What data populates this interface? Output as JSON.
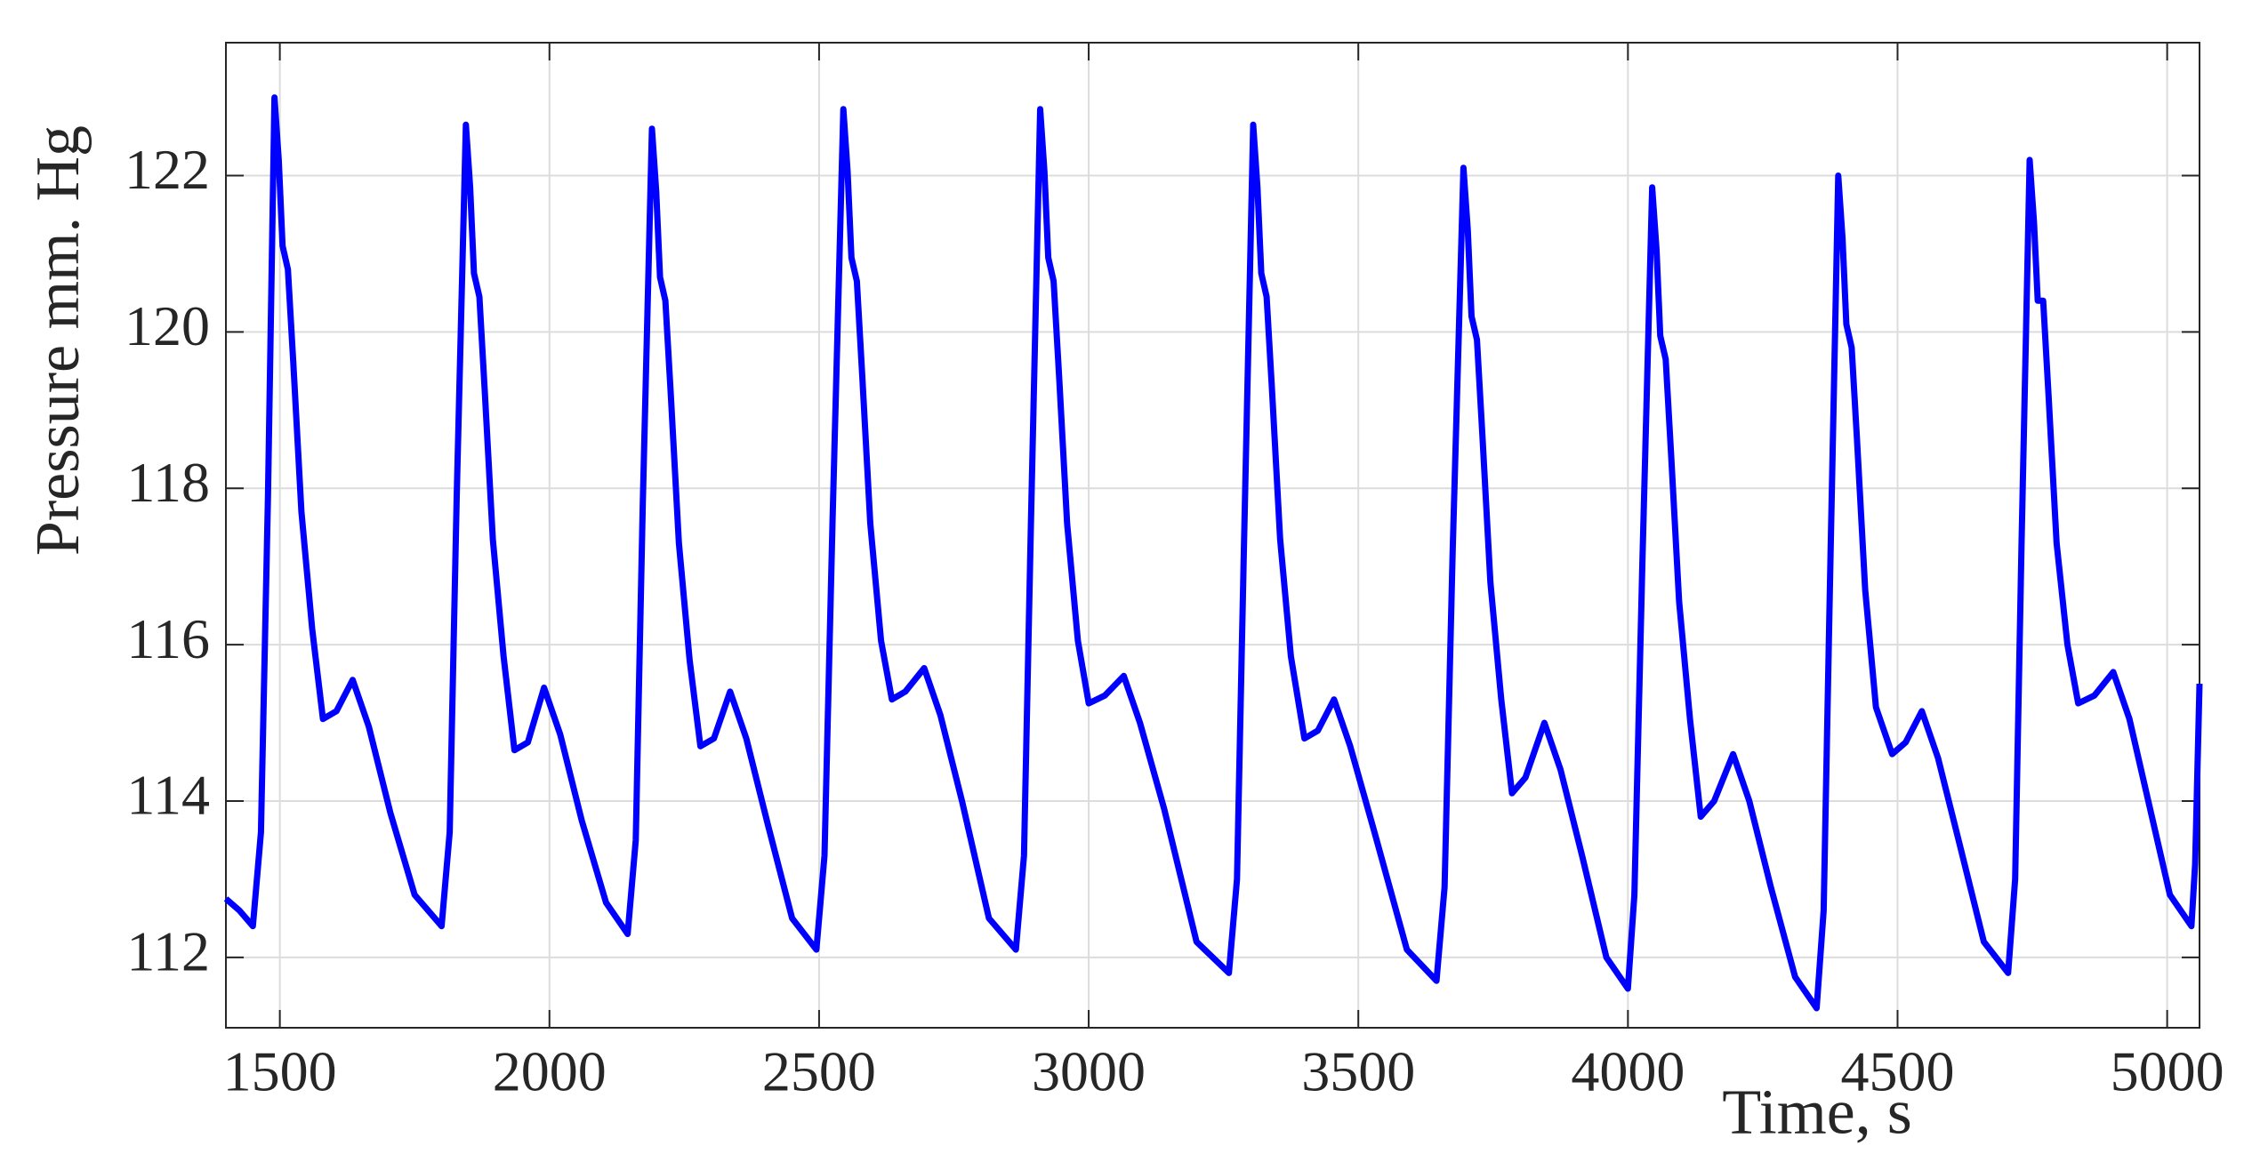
{
  "chart_data": {
    "type": "line",
    "xlabel": "Time, s",
    "ylabel": "Pressure mm. Hg",
    "color": "#0000ff",
    "grid": true,
    "xlim": [
      1400,
      5060
    ],
    "ylim": [
      111.1,
      123.7
    ],
    "xticks": [
      1500,
      2000,
      2500,
      3000,
      3500,
      4000,
      4500,
      5000
    ],
    "yticks": [
      112,
      114,
      116,
      118,
      120,
      122
    ],
    "x": [
      1400,
      1425,
      1450,
      1465,
      1478,
      1490,
      1498,
      1505,
      1515,
      1525,
      1540,
      1560,
      1580,
      1605,
      1635,
      1665,
      1705,
      1750,
      1800,
      1815,
      1828,
      1845,
      1853,
      1860,
      1870,
      1880,
      1895,
      1915,
      1935,
      1960,
      1990,
      2020,
      2060,
      2105,
      2145,
      2160,
      2173,
      2190,
      2198,
      2205,
      2215,
      2225,
      2240,
      2260,
      2280,
      2305,
      2335,
      2365,
      2405,
      2450,
      2495,
      2510,
      2525,
      2545,
      2553,
      2560,
      2570,
      2580,
      2595,
      2615,
      2635,
      2660,
      2695,
      2725,
      2765,
      2815,
      2865,
      2880,
      2893,
      2910,
      2918,
      2925,
      2935,
      2945,
      2960,
      2980,
      3000,
      3030,
      3065,
      3095,
      3140,
      3200,
      3260,
      3275,
      3288,
      3305,
      3313,
      3320,
      3330,
      3340,
      3355,
      3375,
      3400,
      3425,
      3455,
      3485,
      3530,
      3590,
      3645,
      3660,
      3675,
      3695,
      3703,
      3710,
      3720,
      3730,
      3745,
      3765,
      3785,
      3810,
      3845,
      3875,
      3915,
      3960,
      4000,
      4012,
      4027,
      4045,
      4053,
      4060,
      4070,
      4080,
      4095,
      4115,
      4135,
      4160,
      4195,
      4225,
      4265,
      4310,
      4350,
      4363,
      4375,
      4390,
      4398,
      4405,
      4415,
      4425,
      4440,
      4460,
      4490,
      4515,
      4545,
      4575,
      4615,
      4660,
      4705,
      4718,
      4730,
      4745,
      4753,
      4760,
      4770,
      4780,
      4795,
      4815,
      4835,
      4865,
      4900,
      4930,
      4965,
      5005,
      5045,
      5052,
      5060
    ],
    "values": [
      112.75,
      112.6,
      112.4,
      113.6,
      117.9,
      123.0,
      122.2,
      121.1,
      120.8,
      119.6,
      117.7,
      116.2,
      115.05,
      115.15,
      115.55,
      114.95,
      113.85,
      112.8,
      112.4,
      113.6,
      117.9,
      122.65,
      121.85,
      120.75,
      120.45,
      119.25,
      117.35,
      115.85,
      114.65,
      114.75,
      115.45,
      114.85,
      113.75,
      112.7,
      112.3,
      113.5,
      117.8,
      122.6,
      121.8,
      120.7,
      120.4,
      119.2,
      117.3,
      115.8,
      114.7,
      114.8,
      115.4,
      114.8,
      113.7,
      112.5,
      112.1,
      113.3,
      117.6,
      122.85,
      122.05,
      120.95,
      120.65,
      119.45,
      117.55,
      116.05,
      115.3,
      115.4,
      115.7,
      115.1,
      114.0,
      112.5,
      112.1,
      113.3,
      117.6,
      122.85,
      122.05,
      120.95,
      120.65,
      119.45,
      117.55,
      116.05,
      115.25,
      115.35,
      115.6,
      115.0,
      113.9,
      112.2,
      111.8,
      113.0,
      117.3,
      122.65,
      121.85,
      120.75,
      120.45,
      119.25,
      117.35,
      115.85,
      114.8,
      114.9,
      115.3,
      114.7,
      113.6,
      112.1,
      111.7,
      112.9,
      117.2,
      122.1,
      121.3,
      120.2,
      119.9,
      118.7,
      116.8,
      115.3,
      114.1,
      114.3,
      115.0,
      114.4,
      113.3,
      112.0,
      111.6,
      112.8,
      117.1,
      121.85,
      121.05,
      119.95,
      119.65,
      118.45,
      116.55,
      115.05,
      113.8,
      114.0,
      114.6,
      114.0,
      112.9,
      111.75,
      111.35,
      112.6,
      116.9,
      122.0,
      121.2,
      120.1,
      119.8,
      118.6,
      116.7,
      115.2,
      114.6,
      114.75,
      115.15,
      114.55,
      113.45,
      112.2,
      111.8,
      113.0,
      117.3,
      122.2,
      121.4,
      120.4,
      120.4,
      119.2,
      117.3,
      116.0,
      115.25,
      115.35,
      115.65,
      115.05,
      114.0,
      112.8,
      112.4,
      113.2,
      115.5
    ]
  }
}
